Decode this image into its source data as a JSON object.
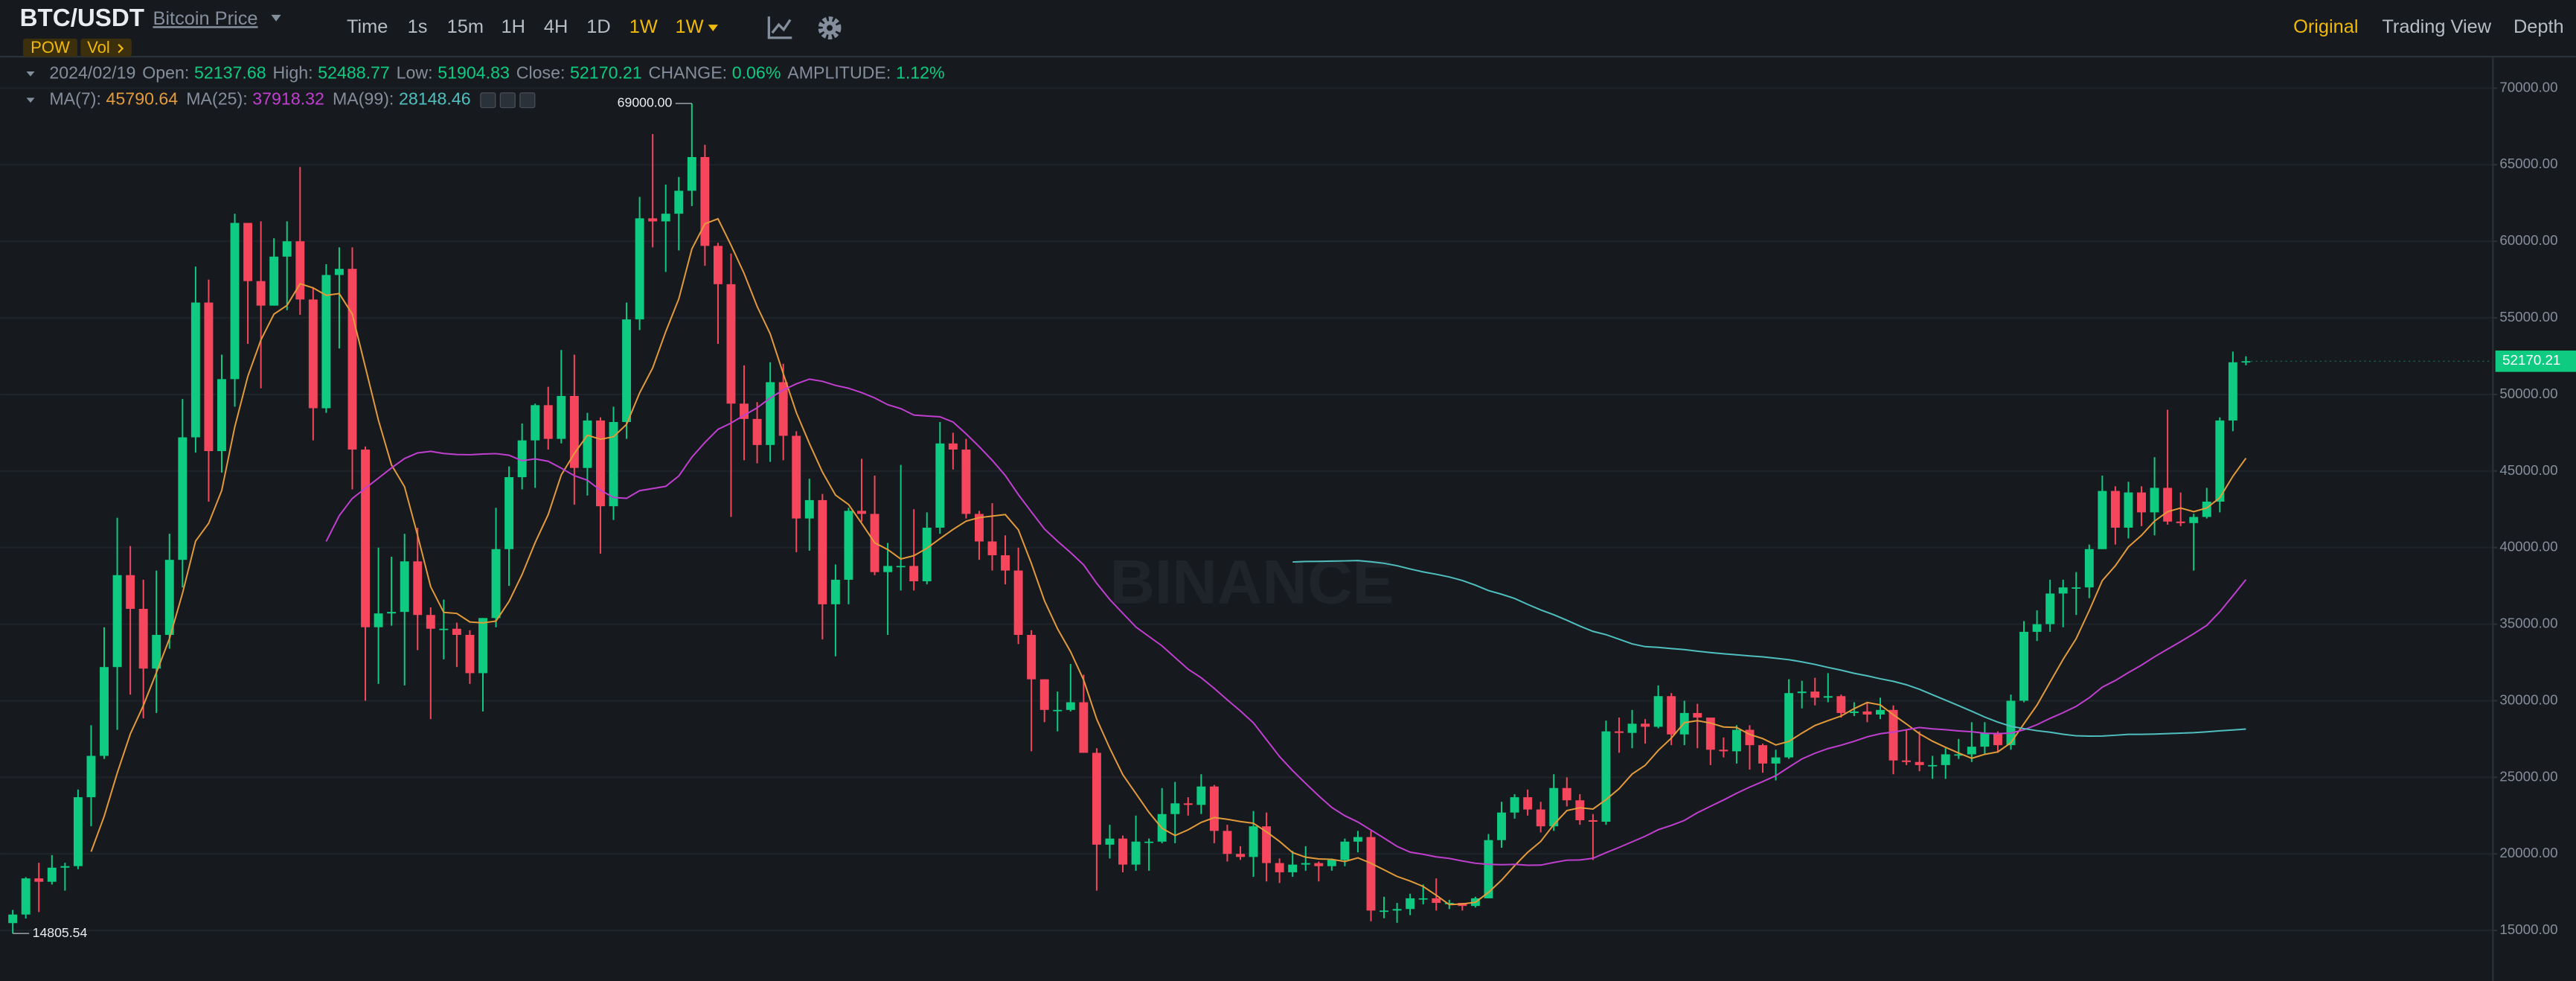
{
  "header": {
    "symbol": "BTC/USDT",
    "name": "Bitcoin Price",
    "tags": [
      "POW",
      "Vol"
    ],
    "intervals": [
      "Time",
      "1s",
      "15m",
      "1H",
      "4H",
      "1D",
      "1W"
    ],
    "active_interval": "1W",
    "views": [
      "Original",
      "Trading View",
      "Depth"
    ],
    "active_view": "Original"
  },
  "chart_data": {
    "type": "candlestick",
    "date": "2024/02/19",
    "fields": [
      "Open:",
      "High:",
      "Low:",
      "Close:"
    ],
    "change": {
      "label": "CHANGE:",
      "value": "0.06%"
    },
    "amplitude": {
      "label": "AMPLITUDE:",
      "value": "1.12%"
    },
    "ma": [
      {
        "name": "MA(7):",
        "value": 45790.64,
        "color": "#e39a3b"
      },
      {
        "name": "MA(25):",
        "value": 37918.32,
        "color": "#c13fd0"
      },
      {
        "name": "MA(99):",
        "value": 28148.46,
        "color": "#4fbfbf"
      }
    ],
    "up_color": "#0ecb81",
    "down_color": "#f6465d",
    "watermark": "BINANCE",
    "annotations": [
      {
        "value": 69000,
        "label": "69000.00"
      },
      {
        "value": 14805.54,
        "label": "14805.54"
      }
    ],
    "ylim": [
      11700,
      72000
    ],
    "yticks": [
      {
        "value": 15000,
        "label": "15000.00"
      },
      {
        "value": 20000,
        "label": "20000.00"
      },
      {
        "value": 25000,
        "label": "25000.00"
      },
      {
        "value": 30000,
        "label": "30000.00"
      },
      {
        "value": 35000,
        "label": "35000.00"
      },
      {
        "value": 40000,
        "label": "40000.00"
      },
      {
        "value": 45000,
        "label": "45000.00"
      },
      {
        "value": 50000,
        "label": "50000.00"
      },
      {
        "value": 55000,
        "label": "55000.00"
      },
      {
        "value": 60000,
        "label": "60000.00"
      },
      {
        "value": 65000,
        "label": "65000.00"
      },
      {
        "value": 70000,
        "label": "70000.00"
      }
    ],
    "grid": true,
    "candles": [
      [
        15480,
        16340,
        14805.54,
        16040
      ],
      [
        16040,
        18480,
        15780,
        18400
      ],
      [
        18400,
        19420,
        16200,
        18180
      ],
      [
        18180,
        19920,
        18000,
        19100
      ],
      [
        19100,
        19420,
        17600,
        19200
      ],
      [
        19200,
        24200,
        19000,
        23700
      ],
      [
        23700,
        28400,
        21800,
        26400
      ],
      [
        26400,
        34800,
        26200,
        32200
      ],
      [
        32200,
        41950,
        28100,
        38200
      ],
      [
        38200,
        40100,
        30400,
        36000
      ],
      [
        36000,
        37900,
        28850,
        32100
      ],
      [
        32100,
        38500,
        29200,
        34300
      ],
      [
        34300,
        40900,
        33400,
        39200
      ],
      [
        39200,
        49700,
        37400,
        47200
      ],
      [
        47200,
        58350,
        46200,
        56000
      ],
      [
        56000,
        57500,
        43000,
        46300
      ],
      [
        46300,
        52600,
        44900,
        51000
      ],
      [
        51000,
        61800,
        49200,
        61200
      ],
      [
        61200,
        61200,
        53300,
        57400
      ],
      [
        57400,
        61300,
        50400,
        55800
      ],
      [
        55800,
        60200,
        55800,
        59000
      ],
      [
        59000,
        61300,
        55500,
        60000
      ],
      [
        60000,
        64850,
        55200,
        56200
      ],
      [
        56200,
        57000,
        47000,
        49100
      ],
      [
        49100,
        58500,
        48800,
        57800
      ],
      [
        57800,
        59600,
        53000,
        58200
      ],
      [
        58200,
        59600,
        43800,
        46400
      ],
      [
        46400,
        46600,
        30000,
        34800
      ],
      [
        34800,
        40000,
        31100,
        35700
      ],
      [
        35700,
        39400,
        34900,
        35800
      ],
      [
        35800,
        40900,
        31000,
        39100
      ],
      [
        39100,
        41300,
        33300,
        35600
      ],
      [
        35600,
        36100,
        28800,
        34700
      ],
      [
        34700,
        36600,
        32700,
        34700
      ],
      [
        34700,
        35100,
        32200,
        34300
      ],
      [
        34300,
        34600,
        31100,
        31800
      ],
      [
        31800,
        35400,
        29300,
        35400
      ],
      [
        35400,
        42600,
        34800,
        39900
      ],
      [
        39900,
        45300,
        37500,
        44600
      ],
      [
        44600,
        48100,
        43800,
        47000
      ],
      [
        47000,
        49400,
        43900,
        49300
      ],
      [
        49300,
        50500,
        46400,
        47100
      ],
      [
        47100,
        52900,
        46800,
        49900
      ],
      [
        49900,
        52600,
        42800,
        45200
      ],
      [
        45200,
        48800,
        43400,
        48300
      ],
      [
        48300,
        48500,
        39600,
        42700
      ],
      [
        42700,
        49200,
        41800,
        48200
      ],
      [
        48200,
        56000,
        47100,
        54900
      ],
      [
        54900,
        62900,
        54200,
        61500
      ],
      [
        61500,
        67000,
        59600,
        61300
      ],
      [
        61300,
        63700,
        58000,
        61800
      ],
      [
        61800,
        64200,
        59400,
        63300
      ],
      [
        63300,
        69000,
        62300,
        65500
      ],
      [
        65500,
        66300,
        58400,
        59700
      ],
      [
        59700,
        59900,
        53300,
        57200
      ],
      [
        57200,
        59200,
        42000,
        49400
      ],
      [
        49400,
        51900,
        45700,
        48400
      ],
      [
        48400,
        49500,
        45500,
        46700
      ],
      [
        46700,
        52100,
        45600,
        50800
      ],
      [
        50800,
        52000,
        45700,
        47300
      ],
      [
        47300,
        47600,
        39700,
        41900
      ],
      [
        41900,
        44500,
        39800,
        43100
      ],
      [
        43100,
        43500,
        34000,
        36300
      ],
      [
        36300,
        38900,
        32900,
        37900
      ],
      [
        37900,
        42600,
        36300,
        42400
      ],
      [
        42400,
        45800,
        41700,
        42200
      ],
      [
        42200,
        44700,
        38200,
        38400
      ],
      [
        38400,
        40300,
        34300,
        38800
      ],
      [
        38800,
        45400,
        37200,
        38800
      ],
      [
        38800,
        42500,
        37200,
        37800
      ],
      [
        37800,
        42300,
        37600,
        41300
      ],
      [
        41300,
        48200,
        40900,
        46800
      ],
      [
        46800,
        47500,
        45100,
        46400
      ],
      [
        46400,
        47100,
        41900,
        42200
      ],
      [
        42200,
        42400,
        39200,
        40400
      ],
      [
        40400,
        42900,
        38500,
        39500
      ],
      [
        39500,
        40800,
        37600,
        38500
      ],
      [
        38500,
        40000,
        33700,
        34300
      ],
      [
        34300,
        34600,
        26700,
        31400
      ],
      [
        31400,
        31400,
        28600,
        29400
      ],
      [
        29400,
        30600,
        28000,
        29400
      ],
      [
        29400,
        32400,
        29300,
        29900
      ],
      [
        29900,
        31700,
        26600,
        26600
      ],
      [
        26600,
        26900,
        17600,
        20600
      ],
      [
        20600,
        21900,
        19700,
        21000
      ],
      [
        21000,
        21200,
        18800,
        19300
      ],
      [
        19300,
        22500,
        18900,
        20800
      ],
      [
        20800,
        21000,
        18900,
        20800
      ],
      [
        20800,
        24300,
        20700,
        22600
      ],
      [
        22600,
        24700,
        20700,
        23300
      ],
      [
        23300,
        23700,
        22500,
        23200
      ],
      [
        23200,
        25200,
        22600,
        24400
      ],
      [
        24400,
        24500,
        20700,
        21500
      ],
      [
        21500,
        21900,
        19500,
        20000
      ],
      [
        20000,
        20500,
        19600,
        19800
      ],
      [
        19800,
        22800,
        18500,
        21800
      ],
      [
        21800,
        22700,
        18200,
        19400
      ],
      [
        19400,
        19700,
        18100,
        18800
      ],
      [
        18800,
        20200,
        18500,
        19300
      ],
      [
        19300,
        20500,
        18900,
        19400
      ],
      [
        19400,
        19500,
        18200,
        19200
      ],
      [
        19200,
        19700,
        18900,
        19600
      ],
      [
        19600,
        21000,
        19200,
        20800
      ],
      [
        20800,
        21500,
        20100,
        21100
      ],
      [
        21100,
        21500,
        15600,
        16300
      ],
      [
        16300,
        17200,
        15800,
        16300
      ],
      [
        16300,
        16800,
        15500,
        16400
      ],
      [
        16400,
        17400,
        16000,
        17100
      ],
      [
        17100,
        18000,
        16700,
        17100
      ],
      [
        17100,
        18400,
        16300,
        16800
      ],
      [
        16800,
        17000,
        16400,
        16800
      ],
      [
        16800,
        16800,
        16300,
        16600
      ],
      [
        16600,
        17200,
        16500,
        17100
      ],
      [
        17100,
        21300,
        17100,
        20900
      ],
      [
        20900,
        23400,
        20400,
        22700
      ],
      [
        22700,
        23900,
        22300,
        23700
      ],
      [
        23700,
        24200,
        22500,
        22900
      ],
      [
        22900,
        23400,
        21400,
        21800
      ],
      [
        21800,
        25200,
        21500,
        24300
      ],
      [
        24300,
        25000,
        23100,
        23500
      ],
      [
        23500,
        23900,
        21900,
        22200
      ],
      [
        22200,
        22600,
        19600,
        22100
      ],
      [
        22100,
        28700,
        21900,
        28000
      ],
      [
        28000,
        28900,
        26600,
        27900
      ],
      [
        27900,
        29400,
        26900,
        28500
      ],
      [
        28500,
        28800,
        27200,
        28300
      ],
      [
        28300,
        31000,
        28200,
        30300
      ],
      [
        30300,
        30500,
        27100,
        27800
      ],
      [
        27800,
        30000,
        27100,
        29200
      ],
      [
        29200,
        29800,
        26900,
        28900
      ],
      [
        28900,
        28900,
        25800,
        26800
      ],
      [
        26800,
        27600,
        26300,
        26700
      ],
      [
        26700,
        28400,
        25900,
        28100
      ],
      [
        28100,
        28400,
        25500,
        27100
      ],
      [
        27100,
        27200,
        25300,
        25900
      ],
      [
        25900,
        26800,
        24800,
        26300
      ],
      [
        26300,
        31400,
        26200,
        30500
      ],
      [
        30500,
        31300,
        29500,
        30600
      ],
      [
        30600,
        31500,
        29700,
        30200
      ],
      [
        30200,
        31800,
        29900,
        30300
      ],
      [
        30300,
        30400,
        28900,
        29200
      ],
      [
        29200,
        29900,
        29000,
        29300
      ],
      [
        29300,
        29900,
        28600,
        29100
      ],
      [
        29100,
        30200,
        28800,
        29400
      ],
      [
        29400,
        29700,
        25200,
        26100
      ],
      [
        26100,
        28100,
        25800,
        26000
      ],
      [
        26000,
        28000,
        25400,
        25800
      ],
      [
        25800,
        26400,
        24900,
        25800
      ],
      [
        25800,
        26900,
        24900,
        26500
      ],
      [
        26500,
        27500,
        26200,
        26500
      ],
      [
        26500,
        28600,
        26000,
        27000
      ],
      [
        27000,
        28600,
        26500,
        27900
      ],
      [
        27900,
        28000,
        26600,
        27100
      ],
      [
        27100,
        30400,
        26800,
        30000
      ],
      [
        30000,
        35200,
        29900,
        34500
      ],
      [
        34500,
        35900,
        33900,
        35000
      ],
      [
        35000,
        37900,
        34500,
        37000
      ],
      [
        37000,
        37900,
        34800,
        37400
      ],
      [
        37400,
        38400,
        35600,
        37400
      ],
      [
        37400,
        40200,
        36700,
        39900
      ],
      [
        39900,
        44700,
        39900,
        43700
      ],
      [
        43700,
        44000,
        40200,
        41300
      ],
      [
        41300,
        44300,
        40600,
        43600
      ],
      [
        43600,
        44000,
        41400,
        42300
      ],
      [
        42300,
        45900,
        40800,
        43900
      ],
      [
        43900,
        49000,
        41500,
        41700
      ],
      [
        41700,
        43600,
        41400,
        41600
      ],
      [
        41600,
        42200,
        38500,
        42000
      ],
      [
        42000,
        43900,
        41900,
        43000
      ],
      [
        43000,
        48500,
        42300,
        48300
      ],
      [
        48300,
        52800,
        47600,
        52100
      ],
      [
        52137.68,
        52488.77,
        51904.83,
        52170.21
      ]
    ]
  }
}
